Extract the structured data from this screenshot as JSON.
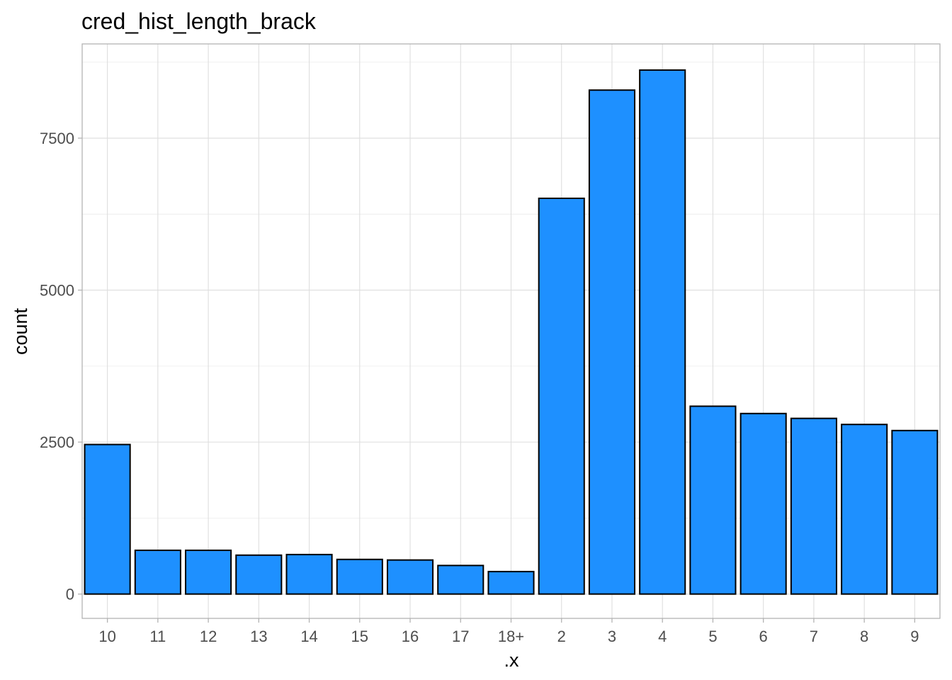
{
  "chart_data": {
    "type": "bar",
    "title": "cred_hist_length_brack",
    "xlabel": ".x",
    "ylabel": "count",
    "categories": [
      "10",
      "11",
      "12",
      "13",
      "14",
      "15",
      "16",
      "17",
      "18+",
      "2",
      "3",
      "4",
      "5",
      "6",
      "7",
      "8",
      "9"
    ],
    "values": [
      2460,
      720,
      720,
      640,
      650,
      570,
      560,
      470,
      370,
      6510,
      8290,
      8620,
      3090,
      2970,
      2890,
      2790,
      2690
    ],
    "y_ticks": [
      0,
      2500,
      5000,
      7500
    ],
    "y_tick_labels": [
      "0",
      "2500",
      "5000",
      "7500"
    ],
    "ylim": [
      -400,
      9050
    ],
    "grid": true,
    "legend": "none",
    "colors": {
      "bar_fill": "#1E90FF",
      "bar_outline": "#000000"
    }
  }
}
